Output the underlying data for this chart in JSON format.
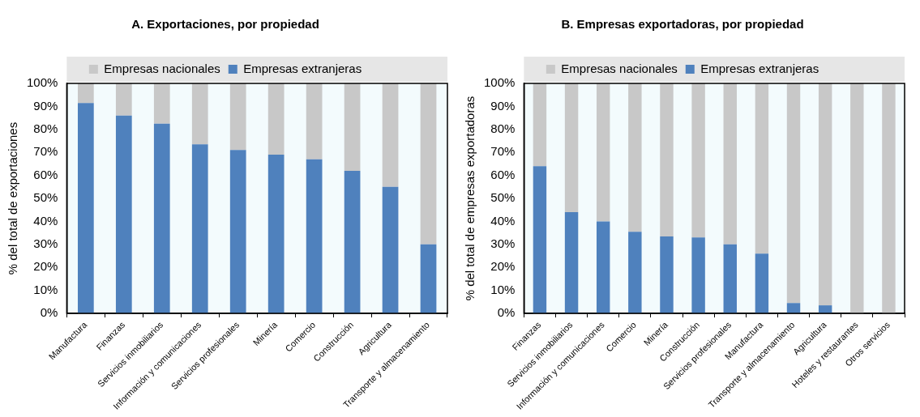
{
  "chart_data": [
    {
      "type": "bar",
      "title": "A. Exportaciones, por propiedad",
      "ylabel": "% del total de exportaciones",
      "stacked": true,
      "legend": "top",
      "grid": false,
      "categories": [
        "Manufactura",
        "Finanzas",
        "Servicios inmobiliarios",
        "Información y comunicaciones",
        "Servicios profesionales",
        "Minería",
        "Comercio",
        "Construcción",
        "Agricultura",
        "Transporte y almacenamiento"
      ],
      "series": [
        {
          "name": "Empresas extranjeras",
          "color": "#4f81bd",
          "values": [
            91.5,
            86,
            82.5,
            73.5,
            71,
            69,
            67,
            62,
            55,
            30
          ]
        },
        {
          "name": "Empresas nacionales",
          "color": "#c8c8c8",
          "values": [
            8.5,
            14,
            17.5,
            26.5,
            29,
            31,
            33,
            38,
            45,
            70
          ]
        }
      ],
      "ylim": [
        0,
        100
      ],
      "yticks": [
        {
          "value": 0,
          "label": "0%"
        },
        {
          "value": 10,
          "label": "10%"
        },
        {
          "value": 20,
          "label": "20%"
        },
        {
          "value": 30,
          "label": "30%"
        },
        {
          "value": 40,
          "label": "40%"
        },
        {
          "value": 50,
          "label": "50%"
        },
        {
          "value": 60,
          "label": "60%"
        },
        {
          "value": 70,
          "label": "70%"
        },
        {
          "value": 80,
          "label": "80%"
        },
        {
          "value": 90,
          "label": "90%"
        },
        {
          "value": 100,
          "label": "100%"
        }
      ]
    },
    {
      "type": "bar",
      "title": "B. Empresas exportadoras, por propiedad",
      "ylabel": "% del total de empresas exportadoras",
      "stacked": true,
      "legend": "top",
      "grid": false,
      "categories": [
        "Finanzas",
        "Servicios inmobiliarios",
        "Información y comunicaciones",
        "Comercio",
        "Minería",
        "Construcción",
        "Servicios profesionales",
        "Manufactura",
        "Transporte y almacenamiento",
        "Agricultura",
        "Hoteles y restaurantes",
        "Otros servicios"
      ],
      "series": [
        {
          "name": "Empresas extranjeras",
          "color": "#4f81bd",
          "values": [
            64,
            44,
            40,
            35.5,
            33.5,
            33,
            30,
            26,
            4.5,
            3.5,
            0,
            0
          ]
        },
        {
          "name": "Empresas nacionales",
          "color": "#c8c8c8",
          "values": [
            36,
            56,
            60,
            64.5,
            66.5,
            67,
            70,
            74,
            95.5,
            96.5,
            100,
            100
          ]
        }
      ],
      "ylim": [
        0,
        100
      ],
      "yticks": [
        {
          "value": 0,
          "label": "0%"
        },
        {
          "value": 10,
          "label": "10%"
        },
        {
          "value": 20,
          "label": "20%"
        },
        {
          "value": 30,
          "label": "30%"
        },
        {
          "value": 40,
          "label": "40%"
        },
        {
          "value": 50,
          "label": "50%"
        },
        {
          "value": 60,
          "label": "60%"
        },
        {
          "value": 70,
          "label": "70%"
        },
        {
          "value": 80,
          "label": "80%"
        },
        {
          "value": 90,
          "label": "90%"
        },
        {
          "value": 100,
          "label": "100%"
        }
      ]
    }
  ]
}
